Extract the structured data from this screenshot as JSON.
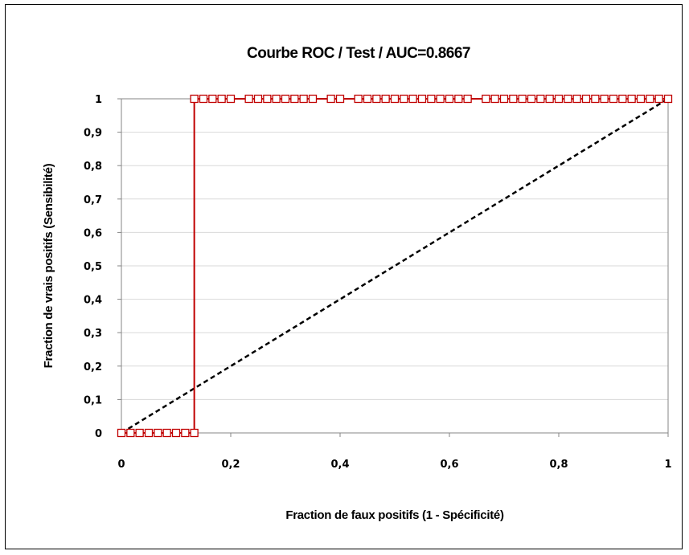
{
  "chart_data": {
    "type": "line",
    "title": "Courbe ROC / Test / AUC=0.8667",
    "xlabel": "Fraction de faux positifs (1 - Spécificité)",
    "ylabel": "Fraction de vrais positifs (Sensibilité)",
    "xlim": [
      0,
      1
    ],
    "ylim": [
      0,
      1
    ],
    "x_ticks": [
      0,
      0.2,
      0.4,
      0.6,
      0.8,
      1
    ],
    "x_tick_labels": [
      "0",
      "0,2",
      "0,4",
      "0,6",
      "0,8",
      "1"
    ],
    "y_ticks": [
      0,
      0.1,
      0.2,
      0.3,
      0.4,
      0.5,
      0.6,
      0.7,
      0.8,
      0.9,
      1
    ],
    "y_tick_labels": [
      "0",
      "0,1",
      "0,2",
      "0,3",
      "0,4",
      "0,5",
      "0,6",
      "0,7",
      "0,8",
      "0,9",
      "1"
    ],
    "grid": "horizontal",
    "legend": "none",
    "series": [
      {
        "color": "#c00000",
        "style": "solid-with-square-markers",
        "points": [
          [
            0,
            0
          ],
          [
            0.0167,
            0
          ],
          [
            0.0333,
            0
          ],
          [
            0.05,
            0
          ],
          [
            0.0667,
            0
          ],
          [
            0.0833,
            0
          ],
          [
            0.1,
            0
          ],
          [
            0.1167,
            0
          ],
          [
            0.1333,
            0
          ],
          [
            0.1333,
            1
          ],
          [
            0.15,
            1
          ],
          [
            0.1667,
            1
          ],
          [
            0.1833,
            1
          ],
          [
            0.2,
            1
          ],
          [
            0.2333,
            1
          ],
          [
            0.25,
            1
          ],
          [
            0.2667,
            1
          ],
          [
            0.2833,
            1
          ],
          [
            0.3,
            1
          ],
          [
            0.3167,
            1
          ],
          [
            0.3333,
            1
          ],
          [
            0.35,
            1
          ],
          [
            0.3833,
            1
          ],
          [
            0.4,
            1
          ],
          [
            0.4333,
            1
          ],
          [
            0.45,
            1
          ],
          [
            0.4667,
            1
          ],
          [
            0.4833,
            1
          ],
          [
            0.5,
            1
          ],
          [
            0.5167,
            1
          ],
          [
            0.5333,
            1
          ],
          [
            0.55,
            1
          ],
          [
            0.5667,
            1
          ],
          [
            0.5833,
            1
          ],
          [
            0.6,
            1
          ],
          [
            0.6167,
            1
          ],
          [
            0.6333,
            1
          ],
          [
            0.6667,
            1
          ],
          [
            0.6833,
            1
          ],
          [
            0.7,
            1
          ],
          [
            0.7167,
            1
          ],
          [
            0.7333,
            1
          ],
          [
            0.75,
            1
          ],
          [
            0.7667,
            1
          ],
          [
            0.7833,
            1
          ],
          [
            0.8,
            1
          ],
          [
            0.8167,
            1
          ],
          [
            0.8333,
            1
          ],
          [
            0.85,
            1
          ],
          [
            0.8667,
            1
          ],
          [
            0.8833,
            1
          ],
          [
            0.9,
            1
          ],
          [
            0.9167,
            1
          ],
          [
            0.9333,
            1
          ],
          [
            0.95,
            1
          ],
          [
            0.9667,
            1
          ],
          [
            0.9833,
            1
          ],
          [
            1,
            1
          ]
        ]
      },
      {
        "color": "#000000",
        "style": "dashed",
        "points": [
          [
            0,
            0
          ],
          [
            1,
            1
          ]
        ]
      }
    ]
  }
}
